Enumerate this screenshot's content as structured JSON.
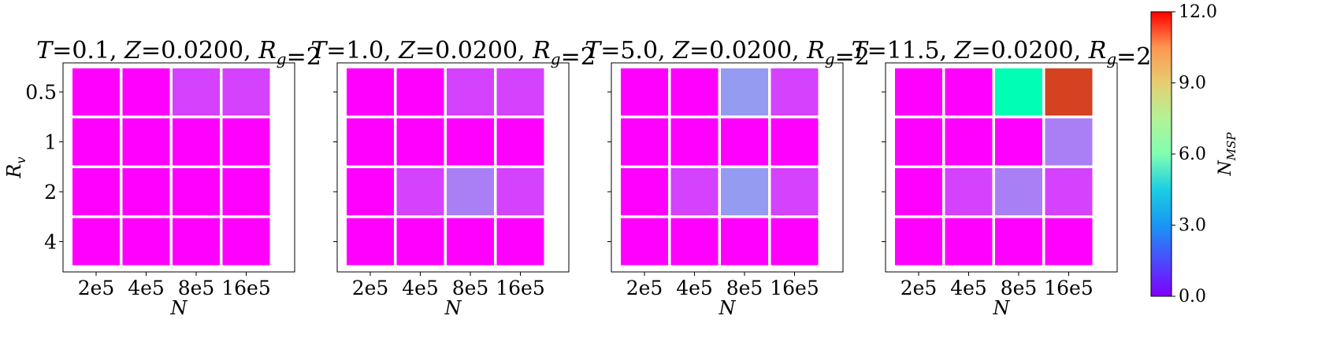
{
  "chart_data": [
    {
      "type": "heatmap",
      "title": "T = 0.1, Z = 0.0200, R_g = 2",
      "x_categories": [
        "2e5",
        "4e5",
        "8e5",
        "16e5"
      ],
      "y_categories": [
        "0.5",
        "1",
        "2",
        "4"
      ],
      "xlabel": "N",
      "ylabel": "R_v",
      "values": [
        [
          0,
          0,
          1,
          1
        ],
        [
          0,
          0,
          0,
          0
        ],
        [
          0,
          0,
          0,
          0
        ],
        [
          0,
          0,
          0,
          0
        ]
      ]
    },
    {
      "type": "heatmap",
      "title": "T = 1.0, Z = 0.0200, R_g = 2",
      "x_categories": [
        "2e5",
        "4e5",
        "8e5",
        "16e5"
      ],
      "y_categories": [
        "0.5",
        "1",
        "2",
        "4"
      ],
      "xlabel": "N",
      "ylabel": "",
      "values": [
        [
          0,
          0,
          1,
          1
        ],
        [
          0,
          0,
          0,
          0
        ],
        [
          0,
          1,
          2,
          1
        ],
        [
          0,
          0,
          0,
          0
        ]
      ]
    },
    {
      "type": "heatmap",
      "title": "T = 5.0, Z = 0.0200, R_g = 2",
      "x_categories": [
        "2e5",
        "4e5",
        "8e5",
        "16e5"
      ],
      "y_categories": [
        "0.5",
        "1",
        "2",
        "4"
      ],
      "xlabel": "N",
      "ylabel": "",
      "values": [
        [
          0,
          0,
          2.5,
          1
        ],
        [
          0,
          0,
          0,
          0
        ],
        [
          0,
          1,
          2.5,
          1
        ],
        [
          0,
          0,
          0,
          0
        ]
      ]
    },
    {
      "type": "heatmap",
      "title": "T = 11.5, Z = 0.0200, R_g = 2",
      "x_categories": [
        "2e5",
        "4e5",
        "8e5",
        "16e5"
      ],
      "y_categories": [
        "0.5",
        "1",
        "2",
        "4"
      ],
      "xlabel": "N",
      "ylabel": "",
      "values": [
        [
          0,
          0,
          6,
          11
        ],
        [
          0,
          0,
          0,
          2
        ],
        [
          0,
          1,
          2,
          1
        ],
        [
          0,
          0,
          0,
          0
        ]
      ]
    }
  ],
  "colorbar": {
    "label": "N_MSP",
    "colormap": "rainbow",
    "vmin": 0.0,
    "vmax": 12.0,
    "ticks": [
      "0.0",
      "3.0",
      "6.0",
      "9.0",
      "12.0"
    ]
  }
}
